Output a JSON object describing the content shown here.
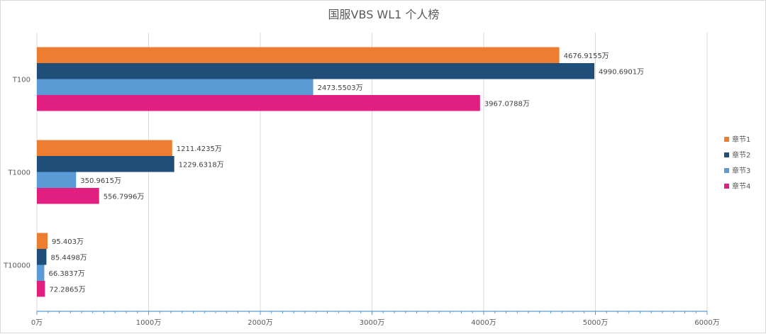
{
  "chart_data": {
    "type": "bar",
    "orientation": "horizontal",
    "title": "国服VBS WL1 个人榜",
    "categories": [
      "T100",
      "T1000",
      "T10000"
    ],
    "series": [
      {
        "name": "章节1",
        "color": "#ED7D31",
        "values": [
          4676.9155,
          1211.4235,
          95.403
        ],
        "labels": [
          "4676.9155万",
          "1211.4235万",
          "95.403万"
        ]
      },
      {
        "name": "章节2",
        "color": "#1F4E79",
        "values": [
          4990.6901,
          1229.6318,
          85.4498
        ],
        "labels": [
          "4990.6901万",
          "1229.6318万",
          "85.4498万"
        ]
      },
      {
        "name": "章节3",
        "color": "#5B9BD5",
        "values": [
          2473.5503,
          350.9615,
          66.3837
        ],
        "labels": [
          "2473.5503万",
          "350.9615万",
          "66.3837万"
        ]
      },
      {
        "name": "章节4",
        "color": "#E01F80",
        "values": [
          3967.0788,
          556.7996,
          72.2865
        ],
        "labels": [
          "3967.0788万",
          "556.7996万",
          "72.2865万"
        ]
      }
    ],
    "xlim": [
      0,
      6000
    ],
    "x_ticks": [
      0,
      1000,
      2000,
      3000,
      4000,
      5000,
      6000
    ],
    "x_tick_labels": [
      "0万",
      "1000万",
      "2000万",
      "3000万",
      "4000万",
      "5000万",
      "6000万"
    ],
    "grid": true,
    "legend_position": "right"
  }
}
